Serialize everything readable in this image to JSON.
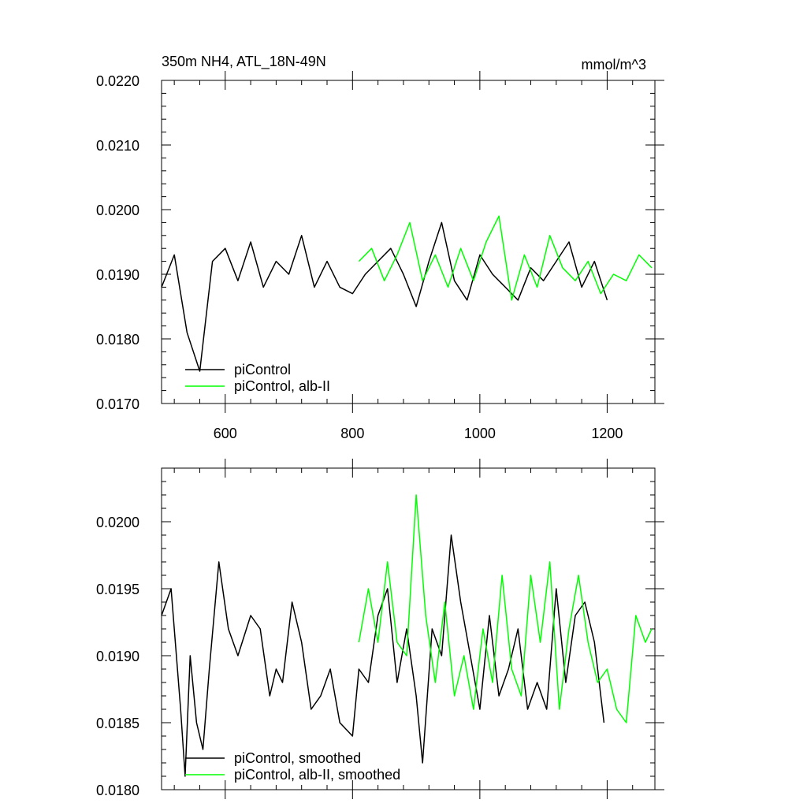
{
  "chart_data": [
    {
      "type": "line",
      "title": "350m NH4, ATL_18N-49N",
      "units_label": "mmol/m^3",
      "xlim": [
        500,
        1275
      ],
      "ylim": [
        0.017,
        0.022
      ],
      "x_ticks": [
        600,
        800,
        1000,
        1200
      ],
      "x_tick_labels": [
        "600",
        "800",
        "1000",
        "1200"
      ],
      "y_ticks": [
        0.017,
        0.018,
        0.019,
        0.02,
        0.021,
        0.022
      ],
      "y_tick_labels": [
        "0.0170",
        "0.0180",
        "0.0190",
        "0.0200",
        "0.0210",
        "0.0220"
      ],
      "legend_position": "bottom-left",
      "series": [
        {
          "name": "piControl",
          "color": "#000000",
          "x": [
            500,
            520,
            540,
            560,
            580,
            600,
            620,
            640,
            660,
            680,
            700,
            720,
            740,
            760,
            780,
            800,
            820,
            840,
            860,
            880,
            900,
            920,
            940,
            960,
            980,
            1000,
            1020,
            1040,
            1060,
            1080,
            1100,
            1120,
            1140,
            1160,
            1180,
            1200
          ],
          "y": [
            0.0188,
            0.0193,
            0.0181,
            0.0175,
            0.0192,
            0.0194,
            0.0189,
            0.0195,
            0.0188,
            0.0192,
            0.019,
            0.0196,
            0.0188,
            0.0192,
            0.0188,
            0.0187,
            0.019,
            0.0192,
            0.0194,
            0.019,
            0.0185,
            0.0192,
            0.0198,
            0.0189,
            0.0186,
            0.0193,
            0.019,
            0.0188,
            0.0186,
            0.0191,
            0.0189,
            0.0192,
            0.0195,
            0.0188,
            0.0192,
            0.0186
          ]
        },
        {
          "name": "piControl, alb-II",
          "color": "#00ff00",
          "x": [
            810,
            830,
            850,
            870,
            890,
            910,
            930,
            950,
            970,
            990,
            1010,
            1030,
            1050,
            1070,
            1090,
            1110,
            1130,
            1150,
            1170,
            1190,
            1210,
            1230,
            1250,
            1270
          ],
          "y": [
            0.0192,
            0.0194,
            0.0189,
            0.0193,
            0.0198,
            0.0189,
            0.0193,
            0.0188,
            0.0194,
            0.0189,
            0.0195,
            0.0199,
            0.0186,
            0.0193,
            0.0188,
            0.0196,
            0.0191,
            0.0189,
            0.0192,
            0.0187,
            0.019,
            0.0189,
            0.0193,
            0.0191
          ]
        }
      ]
    },
    {
      "type": "line",
      "xlim": [
        500,
        1275
      ],
      "ylim": [
        0.018,
        0.0204
      ],
      "x_ticks": [
        600,
        800,
        1000,
        1200
      ],
      "y_ticks": [
        0.018,
        0.0185,
        0.019,
        0.0195,
        0.02
      ],
      "y_tick_labels": [
        "0.0180",
        "0.0185",
        "0.0190",
        "0.0195",
        "0.0200"
      ],
      "legend_position": "bottom-left",
      "series": [
        {
          "name": "piControl, smoothed",
          "color": "#000000",
          "x": [
            500,
            515,
            530,
            537,
            545,
            555,
            565,
            575,
            590,
            605,
            620,
            640,
            655,
            670,
            680,
            690,
            705,
            720,
            735,
            750,
            765,
            780,
            800,
            810,
            825,
            840,
            855,
            870,
            885,
            900,
            910,
            925,
            940,
            955,
            970,
            985,
            1000,
            1015,
            1030,
            1045,
            1060,
            1075,
            1090,
            1105,
            1120,
            1135,
            1150,
            1165,
            1180,
            1195
          ],
          "y": [
            0.0193,
            0.0195,
            0.0186,
            0.0181,
            0.019,
            0.0185,
            0.0183,
            0.0189,
            0.0197,
            0.0192,
            0.019,
            0.0193,
            0.0192,
            0.0187,
            0.0189,
            0.0188,
            0.0194,
            0.0191,
            0.0186,
            0.0187,
            0.0189,
            0.0185,
            0.0184,
            0.0189,
            0.0188,
            0.0193,
            0.0195,
            0.0188,
            0.0192,
            0.0187,
            0.0182,
            0.0192,
            0.019,
            0.0199,
            0.0194,
            0.019,
            0.0186,
            0.0193,
            0.0187,
            0.0189,
            0.0192,
            0.0186,
            0.0188,
            0.0186,
            0.0195,
            0.0188,
            0.0193,
            0.0194,
            0.0191,
            0.0185
          ]
        },
        {
          "name": "piControl, alb-II, smoothed",
          "color": "#00ff00",
          "x": [
            810,
            825,
            840,
            855,
            870,
            885,
            900,
            915,
            930,
            945,
            960,
            975,
            990,
            1005,
            1020,
            1035,
            1050,
            1065,
            1080,
            1095,
            1110,
            1125,
            1140,
            1155,
            1170,
            1185,
            1200,
            1215,
            1230,
            1245,
            1260,
            1270
          ],
          "y": [
            0.0191,
            0.0195,
            0.0191,
            0.0197,
            0.0191,
            0.019,
            0.0202,
            0.0193,
            0.0188,
            0.0194,
            0.0187,
            0.019,
            0.0186,
            0.0192,
            0.0188,
            0.0196,
            0.0189,
            0.0187,
            0.0196,
            0.0191,
            0.0197,
            0.0186,
            0.0192,
            0.0196,
            0.0191,
            0.0188,
            0.0189,
            0.0186,
            0.0185,
            0.0193,
            0.0191,
            0.0192
          ]
        }
      ]
    }
  ]
}
